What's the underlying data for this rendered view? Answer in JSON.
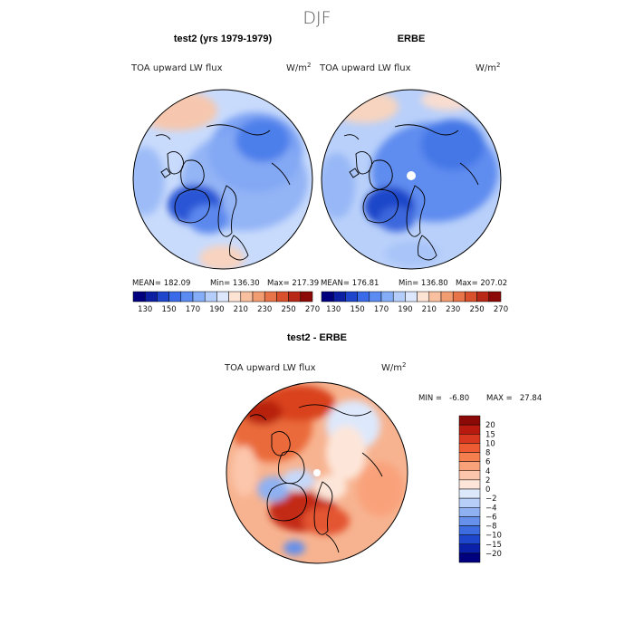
{
  "figure": {
    "season": "DJF"
  },
  "chart_data": [
    {
      "type": "heatmap",
      "projection": "north-polar-stereographic",
      "title": "test2 (yrs 1979-1979)",
      "variable": "TOA upward LW flux",
      "units": "W/m",
      "units_exponent": "2",
      "stats": {
        "mean": "MEAN= 182.09",
        "min": "Min= 136.30",
        "max": "Max= 217.39"
      },
      "colorbar": {
        "orientation": "horizontal",
        "levels": [
          130,
          150,
          170,
          190,
          210,
          230,
          250,
          270
        ],
        "labels": [
          "130",
          "150",
          "170",
          "190",
          "210",
          "230",
          "250",
          "270"
        ],
        "colors": [
          "#00007f",
          "#0c1fa3",
          "#1f45cc",
          "#3a6ae8",
          "#5c8cf2",
          "#86aef8",
          "#b4cdfb",
          "#dce7fd",
          "#fde3d3",
          "#f9c09f",
          "#f29c72",
          "#e8744a",
          "#d8502c",
          "#b82817",
          "#8b0a07"
        ]
      }
    },
    {
      "type": "heatmap",
      "projection": "north-polar-stereographic",
      "title": "ERBE",
      "variable": "TOA upward LW flux",
      "units": "W/m",
      "units_exponent": "2",
      "stats": {
        "mean": "MEAN= 176.81",
        "min": "Min= 136.80",
        "max": "Max= 207.02"
      },
      "colorbar": {
        "orientation": "horizontal",
        "levels": [
          130,
          150,
          170,
          190,
          210,
          230,
          250,
          270
        ],
        "labels": [
          "130",
          "150",
          "170",
          "190",
          "210",
          "230",
          "250",
          "270"
        ]
      }
    },
    {
      "type": "heatmap",
      "projection": "north-polar-stereographic",
      "title": "test2 - ERBE",
      "variable": "TOA upward LW flux",
      "units": "W/m",
      "units_exponent": "2",
      "stats": {
        "min": "MIN =   -6.80",
        "max": "MAX =   27.84"
      },
      "colorbar": {
        "orientation": "vertical",
        "levels": [
          20,
          15,
          10,
          8,
          6,
          4,
          2,
          0,
          -2,
          -4,
          -6,
          -8,
          -10,
          -15,
          -20
        ],
        "labels": [
          "20",
          "15",
          "10",
          "8",
          "6",
          "4",
          "2",
          "0",
          "−2",
          "−4",
          "−6",
          "−8",
          "−10",
          "−15",
          "−20"
        ],
        "colors": [
          "#8b0a07",
          "#b81a0f",
          "#d8381f",
          "#ec5b32",
          "#f57e4f",
          "#f9a27a",
          "#fcc6ac",
          "#fde6d9",
          "#dde9fb",
          "#b7cef8",
          "#8fb1f2",
          "#6690ea",
          "#3d6ce0",
          "#1d46cc",
          "#0a20a8",
          "#00007f"
        ]
      }
    }
  ]
}
